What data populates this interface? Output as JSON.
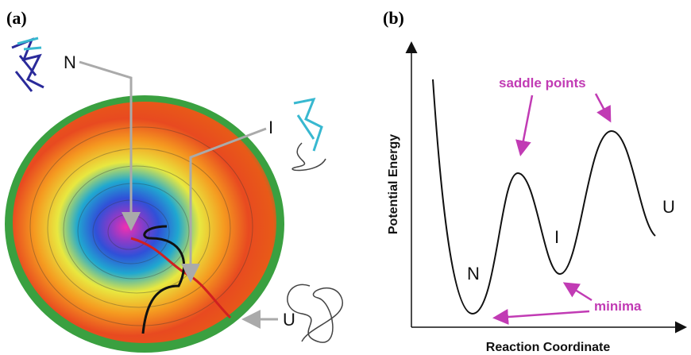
{
  "panel_a": {
    "label": "(a)",
    "states": [
      "N",
      "I",
      "U"
    ]
  },
  "panel_b": {
    "label": "(b)",
    "y_axis": "Potential Energy",
    "x_axis": "Reaction Coordinate",
    "annotations": [
      "saddle points",
      "minima"
    ],
    "states": [
      "N",
      "I",
      "U"
    ]
  }
}
